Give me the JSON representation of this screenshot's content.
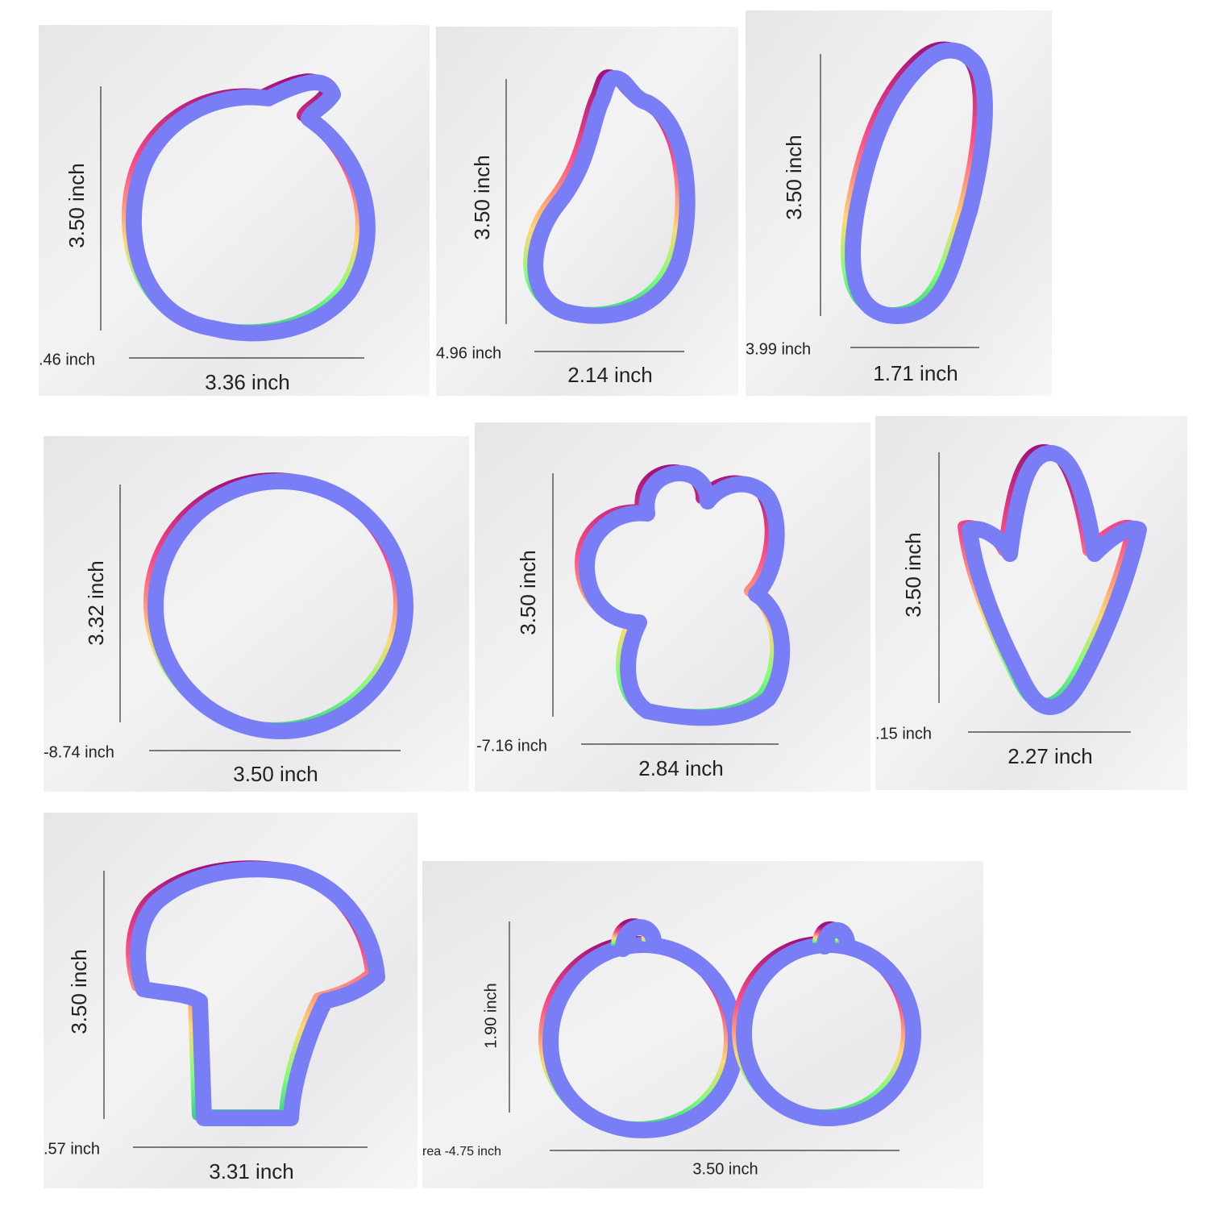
{
  "panels": [
    {
      "height_label": "3.50 inch",
      "area_label": ".46 inch",
      "width_label": "3.36 inch"
    },
    {
      "height_label": "3.50 inch",
      "area_label": "4.96 inch",
      "width_label": "2.14 inch"
    },
    {
      "height_label": "3.50 inch",
      "area_label": "3.99 inch",
      "width_label": "1.71 inch"
    },
    {
      "height_label": "3.32 inch",
      "area_label": "-8.74 inch",
      "width_label": "3.50 inch"
    },
    {
      "height_label": "3.50 inch",
      "area_label": "-7.16 inch",
      "width_label": "2.84 inch"
    },
    {
      "height_label": "3.50 inch",
      "area_label": ".15 inch",
      "width_label": "2.27 inch"
    },
    {
      "height_label": "3.50 inch",
      "area_label": ".57 inch",
      "width_label": "3.31 inch"
    },
    {
      "height_label": "1.90 inch",
      "area_label": "rea -4.75 inch",
      "width_label": "3.50 inch"
    }
  ]
}
